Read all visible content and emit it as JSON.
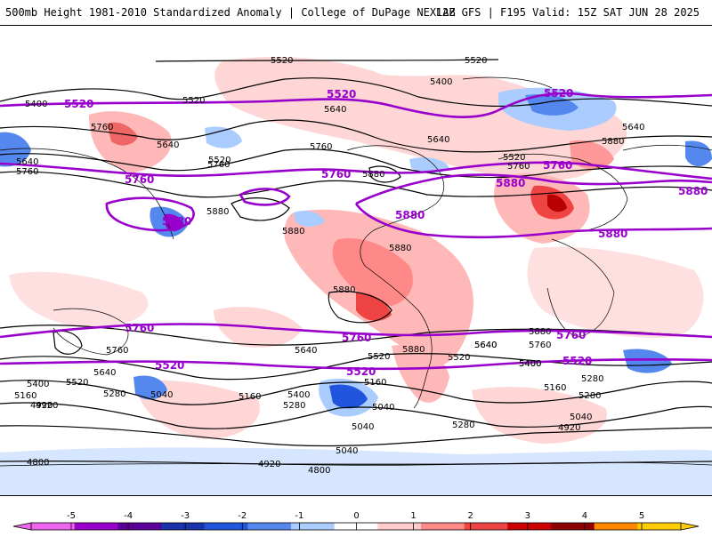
{
  "header": {
    "title_left": "500mb Height 1981-2010 Standardized Anomaly | College of DuPage NEXLAB",
    "title_right": "12Z GFS | F195 Valid: 15Z SAT JUN 28 2025"
  },
  "contour_labels": {
    "black": [
      "5520",
      "5520",
      "5400",
      "5520",
      "5640",
      "5760",
      "5640",
      "5520",
      "5640",
      "5760",
      "5880",
      "5880",
      "5880",
      "5640",
      "5880",
      "5880",
      "5400",
      "5640",
      "5880",
      "5760",
      "5520",
      "5760",
      "5880",
      "5760",
      "5640",
      "5400",
      "5520",
      "5640",
      "5520",
      "5400",
      "5280",
      "5160",
      "5040",
      "4920",
      "5160",
      "5400",
      "5280",
      "5040",
      "5160",
      "5280",
      "5040",
      "4920",
      "4800",
      "5040",
      "4920",
      "4800",
      "5760",
      "5640",
      "5880",
      "5520",
      "5400",
      "5160",
      "5040",
      "5280",
      "4920",
      "5280",
      "5640",
      "5760"
    ],
    "purple": [
      "5520",
      "5520",
      "5520",
      "5760",
      "5760",
      "5880",
      "5880",
      "5760",
      "5880",
      "5880",
      "5880",
      "5760",
      "5760",
      "5760",
      "5520",
      "5520",
      "5520"
    ]
  },
  "colorbar": {
    "ticks": [
      "-5",
      "-4",
      "-3",
      "-2",
      "-1",
      "0",
      "1",
      "2",
      "3",
      "4",
      "5"
    ],
    "colors": [
      "#ee66ee",
      "#9900cc",
      "#5a0099",
      "#1a33aa",
      "#2255dd",
      "#5588ee",
      "#aaccff",
      "#ffffff",
      "#ffcccc",
      "#ff8888",
      "#ee4444",
      "#cc0000",
      "#8b0000",
      "#ff8800",
      "#ffcc00"
    ]
  }
}
